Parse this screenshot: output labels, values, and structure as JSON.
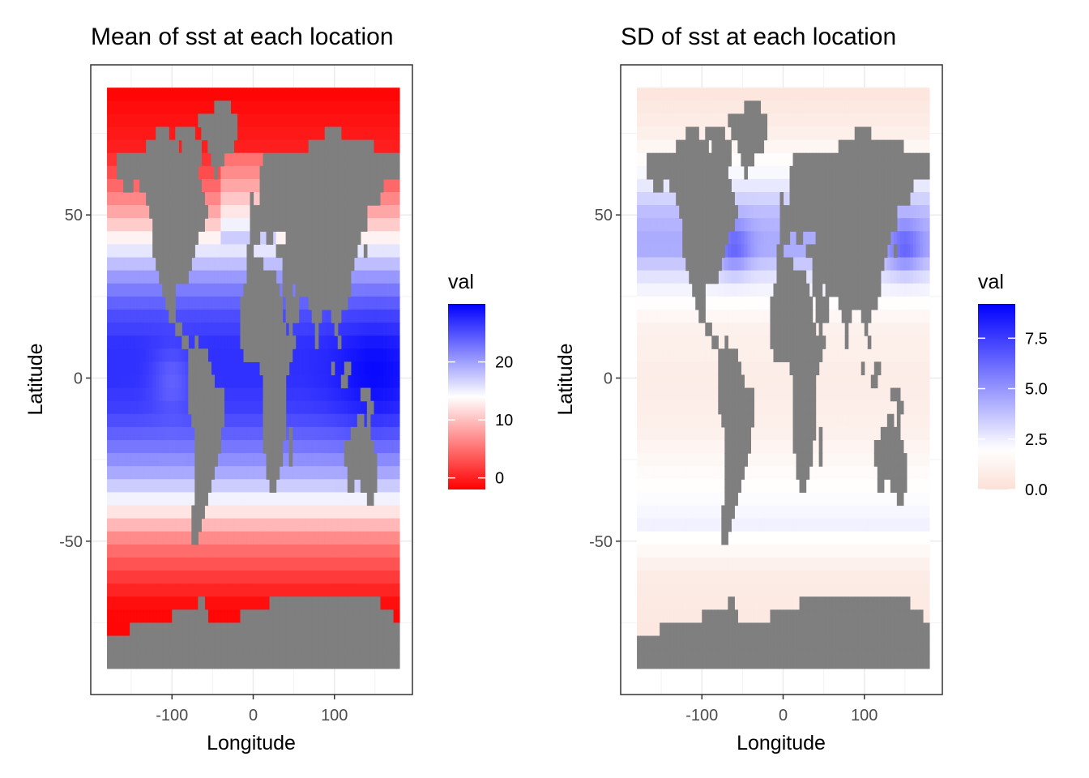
{
  "chart_data": [
    {
      "type": "heatmap",
      "title": "Mean of sst at each location",
      "xlabel": "Longitude",
      "ylabel": "Latitude",
      "x_ticks": [
        -100,
        0,
        100
      ],
      "y_ticks": [
        -50,
        0,
        50
      ],
      "xlim": [
        -200,
        196
      ],
      "ylim": [
        -97,
        96
      ],
      "data_extent": {
        "lon": [
          -180,
          180
        ],
        "lat": [
          -89,
          89
        ]
      },
      "grid": true,
      "land_color": "#7f7f7f",
      "legend": {
        "title": "val",
        "placement": "right",
        "ticks": [
          0,
          10,
          20
        ],
        "range": [
          -2,
          30
        ],
        "colors": {
          "low": "#ff0000",
          "mid": "#ffffff",
          "high": "#0000ff"
        },
        "midpoint": 14
      },
      "zonal_profile": {
        "lat": [
          -89,
          -70,
          -60,
          -50,
          -40,
          -30,
          -20,
          -10,
          0,
          10,
          20,
          30,
          40,
          50,
          60,
          70,
          89
        ],
        "mean_sst": [
          -1.8,
          -1.5,
          2,
          6,
          13,
          19,
          23,
          26,
          27,
          27,
          25,
          21,
          15,
          9,
          4,
          0,
          -1.8
        ]
      }
    },
    {
      "type": "heatmap",
      "title": "SD of sst at each location",
      "xlabel": "Longitude",
      "ylabel": "Latitude",
      "x_ticks": [
        -100,
        0,
        100
      ],
      "y_ticks": [
        -50,
        0,
        50
      ],
      "xlim": [
        -200,
        196
      ],
      "ylim": [
        -97,
        96
      ],
      "data_extent": {
        "lon": [
          -180,
          180
        ],
        "lat": [
          -89,
          89
        ]
      },
      "grid": true,
      "land_color": "#7f7f7f",
      "legend": {
        "title": "val",
        "placement": "right",
        "ticks": [
          "0.0",
          "2.5",
          "5.0",
          "7.5"
        ],
        "tick_values": [
          0,
          2.5,
          5,
          7.5
        ],
        "range": [
          0,
          9.2
        ],
        "colors": {
          "low": "#fbe0d6",
          "mid": "#ffffff",
          "high": "#0000ff"
        },
        "midpoint": 2
      },
      "zonal_profile": {
        "lat": [
          -89,
          -60,
          -45,
          -30,
          -15,
          0,
          15,
          30,
          40,
          50,
          60,
          75,
          89
        ],
        "sd_sst": [
          0.3,
          0.8,
          2.4,
          1.8,
          1.0,
          0.8,
          1.1,
          2.6,
          4.5,
          4.0,
          2.5,
          1.0,
          0.3
        ]
      }
    }
  ]
}
